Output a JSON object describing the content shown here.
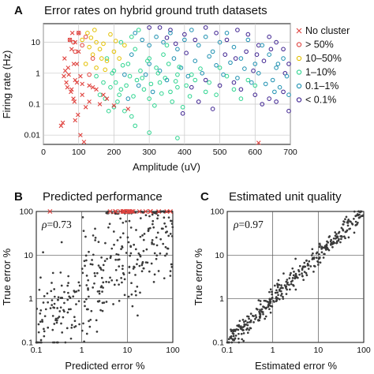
{
  "colors": {
    "no_cluster": "#e0433f",
    "gt50": "#e0433f",
    "r10_50": "#e3c000",
    "r1_10": "#2cd48f",
    "r01_1": "#1b8fb0",
    "lt01": "#3b1f8f",
    "dots": "#3a3a3a"
  },
  "chart_data": [
    {
      "panel": "A",
      "type": "scatter",
      "title": "Error rates on hybrid ground truth datasets",
      "xlabel": "Amplitude (uV)",
      "ylabel": "Firing rate (Hz)",
      "xlim": [
        0,
        700
      ],
      "ylim": [
        0.005,
        40
      ],
      "yscale": "log",
      "xticks": [
        "0",
        "100",
        "200",
        "300",
        "400",
        "500",
        "600",
        "700"
      ],
      "yticks": [
        "0.01",
        "0.1",
        "1",
        "10"
      ],
      "grid": true,
      "legend_position": "right",
      "series": [
        {
          "name": "No cluster",
          "color_key": "no_cluster",
          "marker": "x",
          "points": [
            [
              60,
              3
            ],
            [
              70,
              1.5
            ],
            [
              75,
              12
            ],
            [
              80,
              0.3
            ],
            [
              85,
              0.15
            ],
            [
              90,
              0.03
            ],
            [
              95,
              2
            ],
            [
              100,
              5
            ],
            [
              105,
              0.8
            ],
            [
              110,
              0.2
            ],
            [
              120,
              0.08
            ],
            [
              130,
              0.4
            ],
            [
              90,
              0.6
            ],
            [
              65,
              0.5
            ],
            [
              72,
              0.9
            ],
            [
              78,
              0.25
            ],
            [
              88,
              0.12
            ],
            [
              98,
              0.045
            ],
            [
              50,
              0.02
            ],
            [
              55,
              0.025
            ],
            [
              105,
              0.01
            ],
            [
              115,
              0.006
            ],
            [
              140,
              0.35
            ],
            [
              150,
              0.3
            ],
            [
              160,
              0.1
            ],
            [
              180,
              0.15
            ],
            [
              200,
              0.09
            ],
            [
              170,
              0.2
            ],
            [
              130,
              0.12
            ],
            [
              240,
              0.07
            ],
            [
              610,
              0.004
            ],
            [
              82,
              20
            ],
            [
              100,
              20
            ],
            [
              90,
              10
            ],
            [
              68,
              0.35
            ],
            [
              58,
              0.8
            ],
            [
              86,
              2
            ],
            [
              95,
              0.5
            ],
            [
              62,
              1.2
            ],
            [
              110,
              0.45
            ],
            [
              80,
              6
            ]
          ]
        },
        {
          "name": "> 50%",
          "color_key": "gt50",
          "marker": "o",
          "points": [
            [
              100,
              20
            ],
            [
              120,
              15
            ],
            [
              75,
              12
            ],
            [
              110,
              8
            ],
            [
              90,
              5
            ],
            [
              140,
              3
            ],
            [
              85,
              10
            ],
            [
              130,
              0.9
            ]
          ]
        },
        {
          "name": "10–50%",
          "color_key": "r10_50",
          "marker": "o",
          "points": [
            [
              125,
              20
            ],
            [
              135,
              14
            ],
            [
              150,
              10
            ],
            [
              160,
              6
            ],
            [
              140,
              4
            ],
            [
              180,
              2.5
            ],
            [
              120,
              2
            ],
            [
              170,
              9
            ],
            [
              190,
              18
            ],
            [
              200,
              5
            ],
            [
              150,
              1.5
            ],
            [
              215,
              3
            ],
            [
              230,
              8
            ],
            [
              130,
              7
            ],
            [
              165,
              3
            ],
            [
              145,
              25
            ],
            [
              205,
              11
            ],
            [
              175,
              1.3
            ],
            [
              110,
              12
            ]
          ]
        },
        {
          "name": "1–10%",
          "color_key": "r1_10",
          "marker": "o",
          "points": [
            [
              150,
              0.8
            ],
            [
              170,
              0.5
            ],
            [
              180,
              3
            ],
            [
              200,
              1.2
            ],
            [
              220,
              0.3
            ],
            [
              240,
              2
            ],
            [
              260,
              6
            ],
            [
              280,
              0.7
            ],
            [
              300,
              0.15
            ],
            [
              320,
              1.5
            ],
            [
              340,
              4
            ],
            [
              360,
              0.25
            ],
            [
              380,
              0.9
            ],
            [
              220,
              10
            ],
            [
              250,
              15
            ],
            [
              270,
              25
            ],
            [
              190,
              0.35
            ],
            [
              210,
              0.12
            ],
            [
              230,
              0.06
            ],
            [
              250,
              0.04
            ],
            [
              200,
              0.08
            ],
            [
              300,
              3
            ],
            [
              330,
              0.5
            ],
            [
              350,
              8
            ],
            [
              380,
              0.35
            ],
            [
              420,
              0.9
            ],
            [
              460,
              0.25
            ],
            [
              500,
              1.5
            ],
            [
              160,
              0.2
            ],
            [
              175,
              0.15
            ],
            [
              185,
              0.06
            ],
            [
              195,
              1
            ],
            [
              205,
              0.5
            ],
            [
              215,
              0.2
            ],
            [
              225,
              1.8
            ],
            [
              235,
              0.4
            ],
            [
              245,
              0.8
            ],
            [
              255,
              0.18
            ],
            [
              265,
              0.6
            ],
            [
              275,
              1.2
            ],
            [
              285,
              0.3
            ],
            [
              295,
              2.5
            ],
            [
              305,
              0.45
            ],
            [
              315,
              0.09
            ],
            [
              325,
              1
            ],
            [
              335,
              0.22
            ],
            [
              345,
              0.7
            ],
            [
              355,
              2
            ],
            [
              365,
              0.12
            ],
            [
              375,
              0.55
            ],
            [
              385,
              1.6
            ],
            [
              395,
              0.08
            ],
            [
              405,
              0.4
            ],
            [
              415,
              0.18
            ],
            [
              430,
              0.6
            ],
            [
              445,
              1.4
            ],
            [
              470,
              0.5
            ],
            [
              490,
              0.2
            ],
            [
              520,
              0.8
            ],
            [
              540,
              0.3
            ],
            [
              560,
              0.15
            ],
            [
              580,
              0.6
            ],
            [
              600,
              0.4
            ],
            [
              380,
              0.008
            ],
            [
              300,
              0.012
            ],
            [
              260,
              0.02
            ]
          ]
        },
        {
          "name": "0.1–1%",
          "color_key": "r01_1",
          "marker": "o",
          "points": [
            [
              260,
              20
            ],
            [
              280,
              12
            ],
            [
              300,
              8
            ],
            [
              320,
              15
            ],
            [
              340,
              10
            ],
            [
              360,
              20
            ],
            [
              380,
              6
            ],
            [
              400,
              12
            ],
            [
              420,
              25
            ],
            [
              440,
              8
            ],
            [
              460,
              15
            ],
            [
              480,
              5
            ],
            [
              500,
              10
            ],
            [
              520,
              20
            ],
            [
              540,
              7
            ],
            [
              560,
              3
            ],
            [
              580,
              12
            ],
            [
              600,
              2
            ],
            [
              620,
              8
            ],
            [
              640,
              4
            ],
            [
              660,
              1.5
            ],
            [
              680,
              3
            ],
            [
              300,
              2
            ],
            [
              330,
              1.2
            ],
            [
              350,
              0.6
            ],
            [
              370,
              3
            ],
            [
              390,
              1.5
            ],
            [
              410,
              0.8
            ],
            [
              430,
              2.5
            ],
            [
              450,
              1
            ],
            [
              470,
              3.5
            ],
            [
              490,
              1.8
            ],
            [
              510,
              0.9
            ],
            [
              530,
              2.2
            ],
            [
              550,
              0.7
            ],
            [
              570,
              1.4
            ],
            [
              590,
              0.5
            ],
            [
              610,
              1
            ],
            [
              630,
              0.45
            ],
            [
              650,
              0.6
            ],
            [
              670,
              0.35
            ],
            [
              250,
              4
            ],
            [
              230,
              0.9
            ],
            [
              240,
              0.15
            ],
            [
              270,
              0.4
            ],
            [
              290,
              0.9
            ],
            [
              310,
              0.25
            ],
            [
              690,
              0.8
            ],
            [
              700,
              0.2
            ],
            [
              655,
              0.25
            ],
            [
              665,
              2
            ]
          ]
        },
        {
          "name": "< 0.1%",
          "color_key": "lt01",
          "marker": "o",
          "points": [
            [
              330,
              30
            ],
            [
              360,
              25
            ],
            [
              400,
              18
            ],
            [
              430,
              12
            ],
            [
              460,
              30
            ],
            [
              490,
              20
            ],
            [
              520,
              12
            ],
            [
              550,
              25
            ],
            [
              580,
              18
            ],
            [
              610,
              8
            ],
            [
              640,
              15
            ],
            [
              660,
              10
            ],
            [
              680,
              6
            ],
            [
              560,
              0.3
            ],
            [
              600,
              0.2
            ],
            [
              640,
              0.15
            ],
            [
              680,
              0.25
            ],
            [
              540,
              0.5
            ],
            [
              500,
              0.4
            ],
            [
              480,
              0.07
            ],
            [
              620,
              0.1
            ],
            [
              660,
              0.12
            ],
            [
              700,
              0.06
            ],
            [
              420,
              0.35
            ],
            [
              440,
              0.12
            ],
            [
              395,
              0.05
            ],
            [
              460,
              0.6
            ],
            [
              300,
              30
            ],
            [
              350,
              14
            ],
            [
              375,
              9
            ],
            [
              405,
              4.5
            ],
            [
              515,
              4
            ],
            [
              545,
              3
            ],
            [
              575,
              5
            ],
            [
              605,
              4
            ],
            [
              625,
              2.5
            ],
            [
              645,
              6
            ],
            [
              595,
              1.2
            ],
            [
              685,
              1
            ],
            [
              705,
              2
            ]
          ]
        }
      ]
    },
    {
      "panel": "B",
      "type": "scatter",
      "title": "Predicted performance",
      "xlabel": "Predicted error %",
      "ylabel": "True error %",
      "xlim": [
        0.1,
        100
      ],
      "ylim": [
        0.1,
        100
      ],
      "xscale": "log",
      "yscale": "log",
      "xticks": [
        "0.1",
        "1",
        "10",
        "100"
      ],
      "yticks": [
        "0.1",
        "1",
        "10",
        "100"
      ],
      "grid": true,
      "annotation": "=0.73",
      "annotation_symbol": "ρ",
      "series_points_note": "dots plus red crosses at top"
    },
    {
      "panel": "C",
      "type": "scatter",
      "title": "Estimated unit quality",
      "xlabel": "Estimated error %",
      "ylabel": "True error %",
      "xlim": [
        0.1,
        100
      ],
      "ylim": [
        0.1,
        100
      ],
      "xscale": "log",
      "yscale": "log",
      "xticks": [
        "0.1",
        "1",
        "10",
        "100"
      ],
      "yticks": [
        "0.1",
        "1",
        "10",
        "100"
      ],
      "grid": true,
      "annotation": "=0.97",
      "annotation_symbol": "ρ"
    }
  ],
  "labels": {
    "panel_a": "A",
    "panel_b": "B",
    "panel_c": "C"
  }
}
